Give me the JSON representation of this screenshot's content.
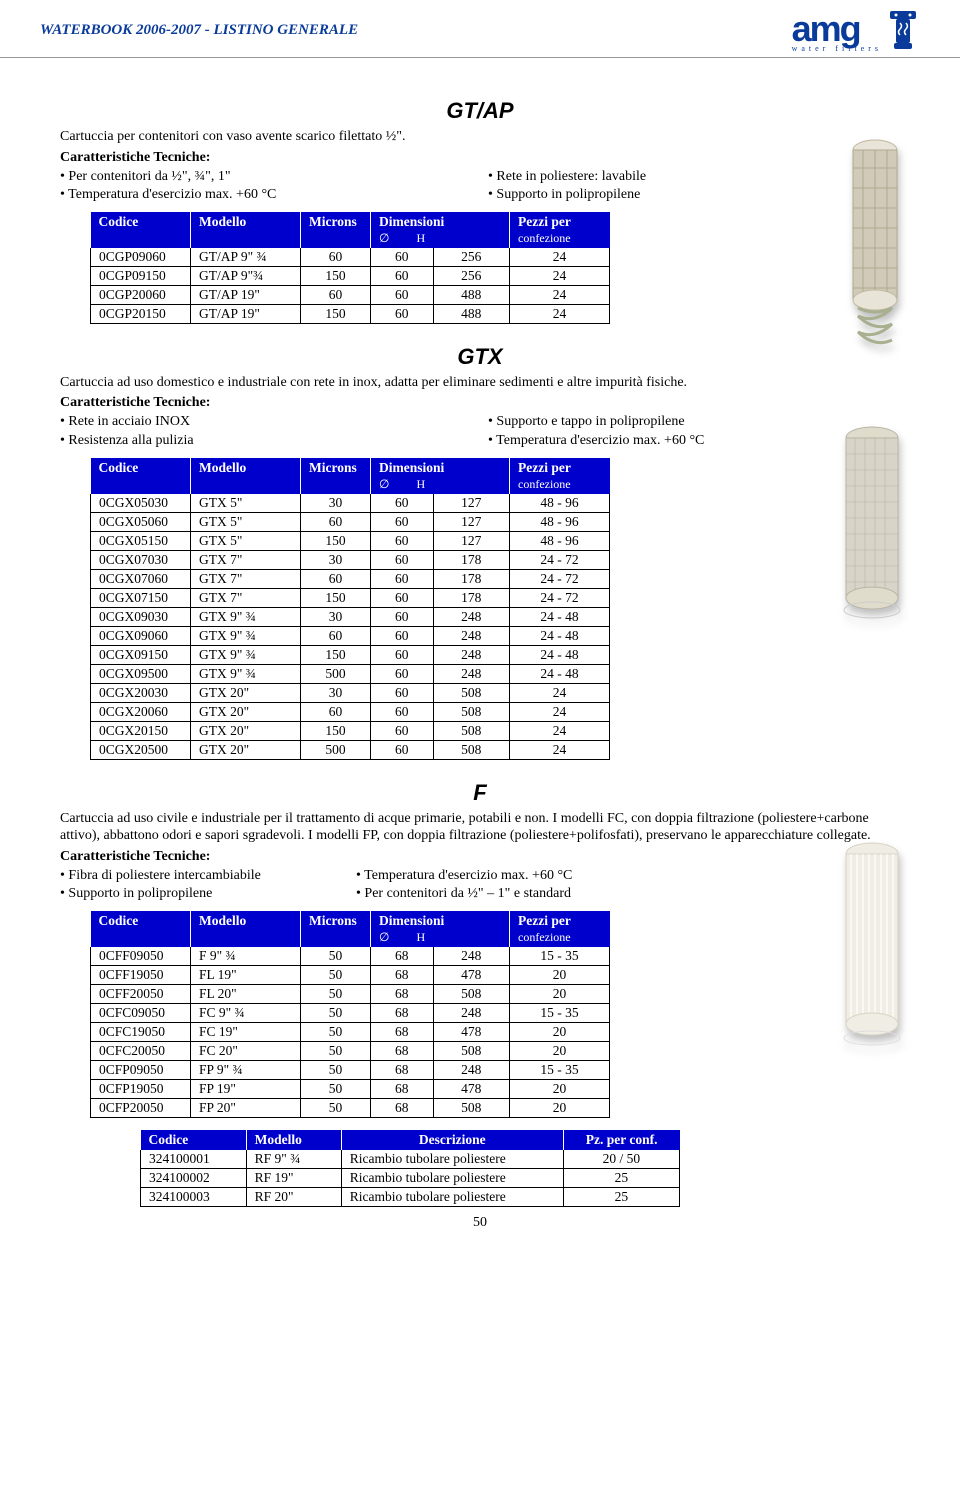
{
  "header": {
    "title": "WATERBOOK 2006-2007 - LISTINO GENERALE",
    "logo_text": "amg",
    "logo_sub": "water filters"
  },
  "page_number": "50",
  "table_headers": {
    "codice": "Codice",
    "modello": "Modello",
    "microns": "Microns",
    "dimensioni": "Dimensioni",
    "diam": "∅",
    "h": "H",
    "pezzi": "Pezzi per",
    "confezione": "confezione",
    "descrizione": "Descrizione",
    "pz_conf": "Pz. per conf."
  },
  "gtap": {
    "title": "GT/AP",
    "desc": "Cartuccia per contenitori con vaso avente scarico filettato ½\".",
    "tech_label": "Caratteristiche Tecniche:",
    "left": [
      "Per contenitori da ½\", ¾\", 1\"",
      "Temperatura d'esercizio max. +60 °C"
    ],
    "right": [
      "Rete in poliestere: lavabile",
      "Supporto in polipropilene"
    ],
    "rows": [
      [
        "0CGP09060",
        "GT/AP 9\" ¾",
        "60",
        "60",
        "256",
        "24"
      ],
      [
        "0CGP09150",
        "GT/AP 9\"¾",
        "150",
        "60",
        "256",
        "24"
      ],
      [
        "0CGP20060",
        "GT/AP 19\"",
        "60",
        "60",
        "488",
        "24"
      ],
      [
        "0CGP20150",
        "GT/AP 19\"",
        "150",
        "60",
        "488",
        "24"
      ]
    ],
    "img_colors": {
      "body": "#e8e4d8",
      "mesh": "#d0cab8",
      "spring": "#a8b090"
    }
  },
  "gtx": {
    "title": "GTX",
    "desc": "Cartuccia ad uso domestico e industriale con rete in inox, adatta per eliminare sedimenti e altre impurità fisiche.",
    "tech_label": "Caratteristiche Tecniche:",
    "left": [
      "Rete in acciaio INOX",
      "Resistenza alla pulizia"
    ],
    "right": [
      "Supporto e tappo in polipropilene",
      "Temperatura d'esercizio max. +60 °C"
    ],
    "rows": [
      [
        "0CGX05030",
        "GTX 5\"",
        "30",
        "60",
        "127",
        "48 - 96"
      ],
      [
        "0CGX05060",
        "GTX 5\"",
        "60",
        "60",
        "127",
        "48 - 96"
      ],
      [
        "0CGX05150",
        "GTX 5\"",
        "150",
        "60",
        "127",
        "48 - 96"
      ],
      [
        "0CGX07030",
        "GTX 7\"",
        "30",
        "60",
        "178",
        "24 - 72"
      ],
      [
        "0CGX07060",
        "GTX 7\"",
        "60",
        "60",
        "178",
        "24 - 72"
      ],
      [
        "0CGX07150",
        "GTX 7\"",
        "150",
        "60",
        "178",
        "24 - 72"
      ],
      [
        "0CGX09030",
        "GTX 9\" ¾",
        "30",
        "60",
        "248",
        "24 - 48"
      ],
      [
        "0CGX09060",
        "GTX 9\" ¾",
        "60",
        "60",
        "248",
        "24 - 48"
      ],
      [
        "0CGX09150",
        "GTX 9\" ¾",
        "150",
        "60",
        "248",
        "24 - 48"
      ],
      [
        "0CGX09500",
        "GTX 9\" ¾",
        "500",
        "60",
        "248",
        "24 - 48"
      ],
      [
        "0CGX20030",
        "GTX 20\"",
        "30",
        "60",
        "508",
        "24"
      ],
      [
        "0CGX20060",
        "GTX 20\"",
        "60",
        "60",
        "508",
        "24"
      ],
      [
        "0CGX20150",
        "GTX 20\"",
        "150",
        "60",
        "508",
        "24"
      ],
      [
        "0CGX20500",
        "GTX 20\"",
        "500",
        "60",
        "508",
        "24"
      ]
    ],
    "img_colors": {
      "body": "#d8d4c8",
      "mesh": "#b8b4a4",
      "cap": "#e0dccc"
    }
  },
  "f": {
    "title": "F",
    "desc": "Cartuccia ad uso civile e industriale per il trattamento di acque primarie, potabili e non. I modelli FC, con doppia filtrazione (poliestere+carbone attivo), abbattono odori e sapori sgradevoli. I modelli FP, con doppia filtrazione (poliestere+polifosfati), preservano le apparecchiature collegate.",
    "tech_label": "Caratteristiche Tecniche:",
    "left": [
      "Fibra di poliestere intercambiabile",
      "Supporto in polipropilene"
    ],
    "right": [
      "Temperatura d'esercizio max. +60 °C",
      "Per contenitori da ½\" – 1\" e standard"
    ],
    "rows": [
      [
        "0CFF09050",
        "F 9\" ¾",
        "50",
        "68",
        "248",
        "15 - 35"
      ],
      [
        "0CFF19050",
        "FL 19\"",
        "50",
        "68",
        "478",
        "20"
      ],
      [
        "0CFF20050",
        "FL 20\"",
        "50",
        "68",
        "508",
        "20"
      ],
      [
        "0CFC09050",
        "FC 9\" ¾",
        "50",
        "68",
        "248",
        "15 - 35"
      ],
      [
        "0CFC19050",
        "FC 19\"",
        "50",
        "68",
        "478",
        "20"
      ],
      [
        "0CFC20050",
        "FC 20\"",
        "50",
        "68",
        "508",
        "20"
      ],
      [
        "0CFP09050",
        "FP 9\" ¾",
        "50",
        "68",
        "248",
        "15 - 35"
      ],
      [
        "0CFP19050",
        "FP 19\"",
        "50",
        "68",
        "478",
        "20"
      ],
      [
        "0CFP20050",
        "FP 20\"",
        "50",
        "68",
        "508",
        "20"
      ]
    ],
    "rows2": [
      [
        "324100001",
        "RF 9\" ¾",
        "Ricambio tubolare poliestere",
        "20 / 50"
      ],
      [
        "324100002",
        "RF 19\"",
        "Ricambio tubolare poliestere",
        "25"
      ],
      [
        "324100003",
        "RF 20\"",
        "Ricambio tubolare poliestere",
        "25"
      ]
    ],
    "img_colors": {
      "body": "#f0ede4",
      "texture": "#ffffff"
    }
  },
  "style": {
    "header_bg": "#0000cd",
    "header_fg": "#ffffff",
    "brand_color": "#0a3b9a",
    "table_widths": {
      "codice": 100,
      "modello": 110,
      "microns": 70,
      "diam": 50,
      "h": 50,
      "pezzi": 100,
      "descrizione": 210,
      "pz_conf": 110
    }
  }
}
